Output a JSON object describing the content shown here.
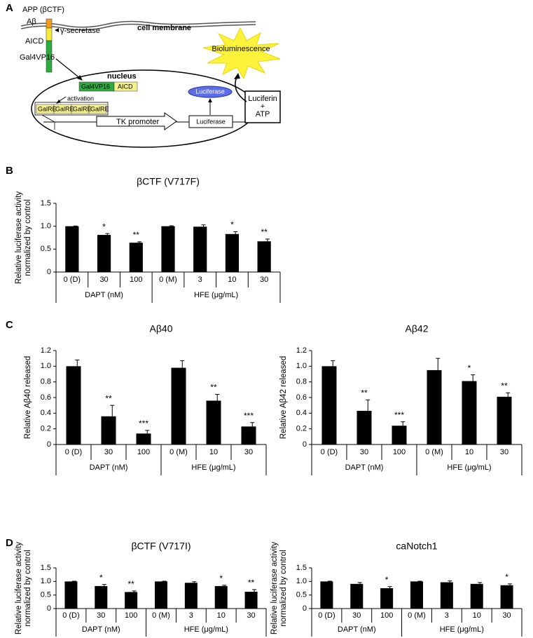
{
  "panel_labels": [
    "A",
    "B",
    "C",
    "D"
  ],
  "diagram": {
    "app": "APP (βCTF)",
    "abeta": "Aβ",
    "secretase": "γ-secretase",
    "aicd": "AICD",
    "gal4vp16": "Gal4VP16",
    "membrane": "cell membrane",
    "nucleus": "nucleus",
    "fusion": [
      "Gal4VP16",
      "AICD"
    ],
    "activation": "activation",
    "galre": [
      "GalRE",
      "GalRE",
      "GalRE",
      "GalRE"
    ],
    "promoter": "TK promoter",
    "reporter_gene": "Luciferase",
    "enzyme": "Luciferase",
    "substrate": [
      "Luciferin",
      "+",
      "ATP"
    ],
    "light": "Bioluminescence"
  },
  "chart_data": [
    {
      "type": "bar",
      "title": "βCTF (V717F)",
      "ylabel": [
        "Relative luciferase activity",
        "normalized by control"
      ],
      "color": "#000000",
      "groups": [
        {
          "label": "DAPT (nM)",
          "categories": [
            "0 (D)",
            "30",
            "100"
          ]
        },
        {
          "label": "HFE (μg/mL)",
          "categories": [
            "0 (M)",
            "3",
            "10",
            "30"
          ]
        }
      ],
      "values": [
        1.0,
        0.81,
        0.64,
        1.0,
        0.99,
        0.83,
        0.67
      ],
      "errors": [
        0.005,
        0.03,
        0.02,
        0.01,
        0.04,
        0.05,
        0.05
      ],
      "annotations": [
        null,
        "*",
        "**",
        null,
        null,
        "*",
        "**"
      ],
      "ylim": [
        0,
        1.5
      ],
      "yticks": [
        0,
        0.5,
        {
          "value": 1,
          "label": "1.0"
        },
        1.5
      ]
    },
    {
      "type": "bar",
      "title": "Aβ40",
      "ylabel": [
        "Relative Aβ40 released"
      ],
      "color": "#000000",
      "groups": [
        {
          "label": "DAPT (nM)",
          "categories": [
            "0 (D)",
            "30",
            "100"
          ]
        },
        {
          "label": "HFE (μg/mL)",
          "categories": [
            "0 (M)",
            "10",
            "30"
          ]
        }
      ],
      "values": [
        1.0,
        0.36,
        0.14,
        0.98,
        0.56,
        0.23
      ],
      "errors": [
        0.08,
        0.14,
        0.04,
        0.09,
        0.08,
        0.05
      ],
      "annotations": [
        null,
        "**",
        "***",
        null,
        "**",
        "***"
      ],
      "ylim": [
        0,
        1.2
      ],
      "yticks": [
        0,
        0.2,
        0.4,
        0.6,
        0.8,
        {
          "value": 1,
          "label": "1.0"
        },
        1.2
      ]
    },
    {
      "type": "bar",
      "title": "Aβ42",
      "ylabel": [
        "Relative Aβ42 released"
      ],
      "color": "#000000",
      "groups": [
        {
          "label": "DAPT (nM)",
          "categories": [
            "0 (D)",
            "30",
            "100"
          ]
        },
        {
          "label": "HFE (μg/mL)",
          "categories": [
            "0 (M)",
            "10",
            "30"
          ]
        }
      ],
      "values": [
        1.0,
        0.43,
        0.24,
        0.95,
        0.81,
        0.61
      ],
      "errors": [
        0.07,
        0.14,
        0.05,
        0.15,
        0.08,
        0.05
      ],
      "annotations": [
        null,
        "**",
        "***",
        null,
        "*",
        "**"
      ],
      "ylim": [
        0,
        1.2
      ],
      "yticks": [
        0,
        0.2,
        0.4,
        0.6,
        0.8,
        {
          "value": 1,
          "label": "1.0"
        },
        1.2
      ]
    },
    {
      "type": "bar",
      "title": "βCTF (V717I)",
      "ylabel": [
        "Relative luciferase activity",
        "normalized by control"
      ],
      "color": "#000000",
      "groups": [
        {
          "label": "DAPT (nM)",
          "categories": [
            "0 (D)",
            "30",
            "100"
          ]
        },
        {
          "label": "HFE (μg/mL)",
          "categories": [
            "0 (M)",
            "3",
            "10",
            "30"
          ]
        }
      ],
      "values": [
        1.0,
        0.83,
        0.61,
        1.0,
        0.95,
        0.83,
        0.62
      ],
      "errors": [
        0.01,
        0.06,
        0.04,
        0.01,
        0.04,
        0.03,
        0.08
      ],
      "annotations": [
        null,
        "*",
        "**",
        null,
        null,
        "*",
        "**"
      ],
      "ylim": [
        0,
        1.5
      ],
      "yticks": [
        0,
        0.5,
        {
          "value": 1,
          "label": "1.0"
        },
        1.5
      ]
    },
    {
      "type": "bar",
      "title": "caNotch1",
      "ylabel": [
        "Relative luciferase activity",
        "normalized by control"
      ],
      "color": "#000000",
      "groups": [
        {
          "label": "DAPT (nM)",
          "categories": [
            "0 (D)",
            "30",
            "100"
          ]
        },
        {
          "label": "HFE (μg/mL)",
          "categories": [
            "0 (M)",
            "3",
            "10",
            "30"
          ]
        }
      ],
      "values": [
        1.0,
        0.91,
        0.75,
        1.0,
        0.97,
        0.91,
        0.86
      ],
      "errors": [
        0.01,
        0.05,
        0.06,
        0.01,
        0.05,
        0.05,
        0.05
      ],
      "annotations": [
        null,
        null,
        "*",
        null,
        null,
        null,
        "*"
      ],
      "ylim": [
        0,
        1.5
      ],
      "yticks": [
        0,
        0.5,
        {
          "value": 1,
          "label": "1.0"
        },
        1.5
      ]
    }
  ]
}
